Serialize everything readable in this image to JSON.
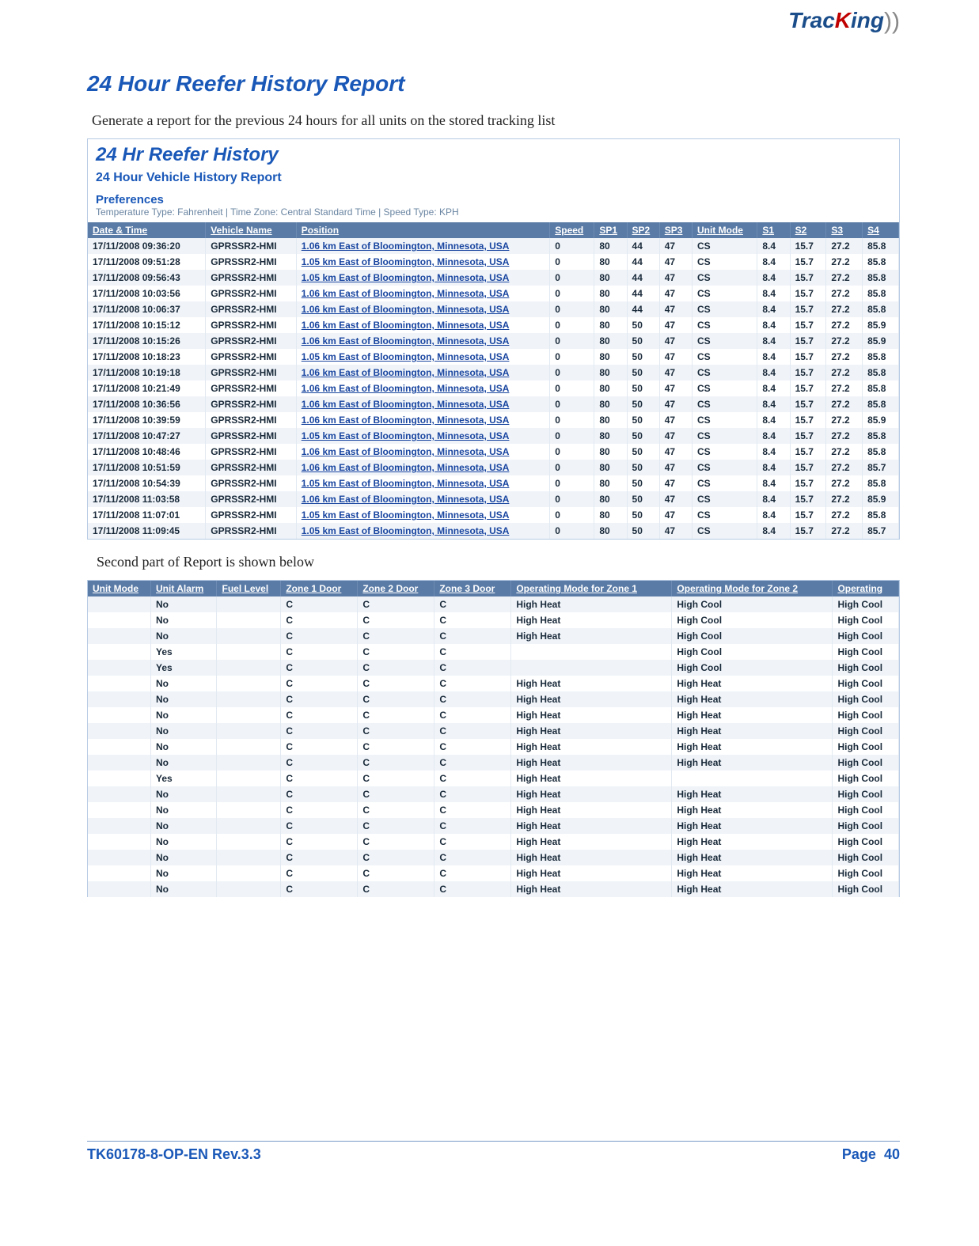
{
  "logo": {
    "part1": "Trac",
    "part2": "K",
    "part3": "ing",
    "arc": "))"
  },
  "section_title": "24 Hour Reefer History Report",
  "intro": "Generate a report for the previous 24 hours for all units on the stored tracking list",
  "second_part_text": "Second part of Report is shown below",
  "footer": {
    "left": "TK60178-8-OP-EN Rev.3.3",
    "right_label": "Page",
    "right_num": "40"
  },
  "ss1": {
    "title": "24 Hr Reefer History",
    "subtitle": "24 Hour Vehicle History Report",
    "pref_label": "Preferences",
    "pref_line": "Temperature Type: Fahrenheit | Time Zone: Central Standard Time | Speed Type: KPH",
    "columns": [
      "Date & Time",
      "Vehicle Name",
      "Position",
      "Speed",
      "SP1",
      "SP2",
      "SP3",
      "Unit Mode",
      "S1",
      "S2",
      "S3",
      "S4"
    ],
    "col_widths": [
      "130",
      "100",
      "280",
      "44",
      "36",
      "36",
      "36",
      "72",
      "36",
      "40",
      "40",
      "40"
    ],
    "rows": [
      [
        "17/11/2008 09:36:20",
        "GPRSSR2-HMI",
        "1.06 km East of Bloomington, Minnesota, USA",
        "0",
        "80",
        "44",
        "47",
        "CS",
        "8.4",
        "15.7",
        "27.2",
        "85.8"
      ],
      [
        "17/11/2008 09:51:28",
        "GPRSSR2-HMI",
        "1.05 km East of Bloomington, Minnesota, USA",
        "0",
        "80",
        "44",
        "47",
        "CS",
        "8.4",
        "15.7",
        "27.2",
        "85.8"
      ],
      [
        "17/11/2008 09:56:43",
        "GPRSSR2-HMI",
        "1.05 km East of Bloomington, Minnesota, USA",
        "0",
        "80",
        "44",
        "47",
        "CS",
        "8.4",
        "15.7",
        "27.2",
        "85.8"
      ],
      [
        "17/11/2008 10:03:56",
        "GPRSSR2-HMI",
        "1.06 km East of Bloomington, Minnesota, USA",
        "0",
        "80",
        "44",
        "47",
        "CS",
        "8.4",
        "15.7",
        "27.2",
        "85.8"
      ],
      [
        "17/11/2008 10:06:37",
        "GPRSSR2-HMI",
        "1.06 km East of Bloomington, Minnesota, USA",
        "0",
        "80",
        "44",
        "47",
        "CS",
        "8.4",
        "15.7",
        "27.2",
        "85.8"
      ],
      [
        "17/11/2008 10:15:12",
        "GPRSSR2-HMI",
        "1.06 km East of Bloomington, Minnesota, USA",
        "0",
        "80",
        "50",
        "47",
        "CS",
        "8.4",
        "15.7",
        "27.2",
        "85.9"
      ],
      [
        "17/11/2008 10:15:26",
        "GPRSSR2-HMI",
        "1.06 km East of Bloomington, Minnesota, USA",
        "0",
        "80",
        "50",
        "47",
        "CS",
        "8.4",
        "15.7",
        "27.2",
        "85.9"
      ],
      [
        "17/11/2008 10:18:23",
        "GPRSSR2-HMI",
        "1.05 km East of Bloomington, Minnesota, USA",
        "0",
        "80",
        "50",
        "47",
        "CS",
        "8.4",
        "15.7",
        "27.2",
        "85.8"
      ],
      [
        "17/11/2008 10:19:18",
        "GPRSSR2-HMI",
        "1.06 km East of Bloomington, Minnesota, USA",
        "0",
        "80",
        "50",
        "47",
        "CS",
        "8.4",
        "15.7",
        "27.2",
        "85.8"
      ],
      [
        "17/11/2008 10:21:49",
        "GPRSSR2-HMI",
        "1.06 km East of Bloomington, Minnesota, USA",
        "0",
        "80",
        "50",
        "47",
        "CS",
        "8.4",
        "15.7",
        "27.2",
        "85.8"
      ],
      [
        "17/11/2008 10:36:56",
        "GPRSSR2-HMI",
        "1.06 km East of Bloomington, Minnesota, USA",
        "0",
        "80",
        "50",
        "47",
        "CS",
        "8.4",
        "15.7",
        "27.2",
        "85.8"
      ],
      [
        "17/11/2008 10:39:59",
        "GPRSSR2-HMI",
        "1.06 km East of Bloomington, Minnesota, USA",
        "0",
        "80",
        "50",
        "47",
        "CS",
        "8.4",
        "15.7",
        "27.2",
        "85.9"
      ],
      [
        "17/11/2008 10:47:27",
        "GPRSSR2-HMI",
        "1.05 km East of Bloomington, Minnesota, USA",
        "0",
        "80",
        "50",
        "47",
        "CS",
        "8.4",
        "15.7",
        "27.2",
        "85.8"
      ],
      [
        "17/11/2008 10:48:46",
        "GPRSSR2-HMI",
        "1.06 km East of Bloomington, Minnesota, USA",
        "0",
        "80",
        "50",
        "47",
        "CS",
        "8.4",
        "15.7",
        "27.2",
        "85.8"
      ],
      [
        "17/11/2008 10:51:59",
        "GPRSSR2-HMI",
        "1.06 km East of Bloomington, Minnesota, USA",
        "0",
        "80",
        "50",
        "47",
        "CS",
        "8.4",
        "15.7",
        "27.2",
        "85.7"
      ],
      [
        "17/11/2008 10:54:39",
        "GPRSSR2-HMI",
        "1.05 km East of Bloomington, Minnesota, USA",
        "0",
        "80",
        "50",
        "47",
        "CS",
        "8.4",
        "15.7",
        "27.2",
        "85.8"
      ],
      [
        "17/11/2008 11:03:58",
        "GPRSSR2-HMI",
        "1.06 km East of Bloomington, Minnesota, USA",
        "0",
        "80",
        "50",
        "47",
        "CS",
        "8.4",
        "15.7",
        "27.2",
        "85.9"
      ],
      [
        "17/11/2008 11:07:01",
        "GPRSSR2-HMI",
        "1.05 km East of Bloomington, Minnesota, USA",
        "0",
        "80",
        "50",
        "47",
        "CS",
        "8.4",
        "15.7",
        "27.2",
        "85.8"
      ],
      [
        "17/11/2008 11:09:45",
        "GPRSSR2-HMI",
        "1.05 km East of Bloomington, Minnesota, USA",
        "0",
        "80",
        "50",
        "47",
        "CS",
        "8.4",
        "15.7",
        "27.2",
        "85.7"
      ]
    ]
  },
  "ss2": {
    "columns": [
      "Unit Mode",
      "Unit Alarm",
      "Fuel Level",
      "Zone 1 Door",
      "Zone 2 Door",
      "Zone 3 Door",
      "Operating Mode for Zone 1",
      "Operating Mode for Zone 2",
      "Operating"
    ],
    "col_widths": [
      "70",
      "74",
      "70",
      "86",
      "86",
      "86",
      "180",
      "180",
      "74"
    ],
    "rows": [
      [
        "",
        "No",
        "",
        "C",
        "C",
        "C",
        "High Heat",
        "High Cool",
        "High Cool"
      ],
      [
        "",
        "No",
        "",
        "C",
        "C",
        "C",
        "High Heat",
        "High Cool",
        "High Cool"
      ],
      [
        "",
        "No",
        "",
        "C",
        "C",
        "C",
        "High Heat",
        "High Cool",
        "High Cool"
      ],
      [
        "",
        "Yes",
        "",
        "C",
        "C",
        "C",
        "",
        "High Cool",
        "High Cool"
      ],
      [
        "",
        "Yes",
        "",
        "C",
        "C",
        "C",
        "",
        "High Cool",
        "High Cool"
      ],
      [
        "",
        "No",
        "",
        "C",
        "C",
        "C",
        "High Heat",
        "High Heat",
        "High Cool"
      ],
      [
        "",
        "No",
        "",
        "C",
        "C",
        "C",
        "High Heat",
        "High Heat",
        "High Cool"
      ],
      [
        "",
        "No",
        "",
        "C",
        "C",
        "C",
        "High Heat",
        "High Heat",
        "High Cool"
      ],
      [
        "",
        "No",
        "",
        "C",
        "C",
        "C",
        "High Heat",
        "High Heat",
        "High Cool"
      ],
      [
        "",
        "No",
        "",
        "C",
        "C",
        "C",
        "High Heat",
        "High Heat",
        "High Cool"
      ],
      [
        "",
        "No",
        "",
        "C",
        "C",
        "C",
        "High Heat",
        "High Heat",
        "High Cool"
      ],
      [
        "",
        "Yes",
        "",
        "C",
        "C",
        "C",
        "High Heat",
        "",
        "High Cool"
      ],
      [
        "",
        "No",
        "",
        "C",
        "C",
        "C",
        "High Heat",
        "High Heat",
        "High Cool"
      ],
      [
        "",
        "No",
        "",
        "C",
        "C",
        "C",
        "High Heat",
        "High Heat",
        "High Cool"
      ],
      [
        "",
        "No",
        "",
        "C",
        "C",
        "C",
        "High Heat",
        "High Heat",
        "High Cool"
      ],
      [
        "",
        "No",
        "",
        "C",
        "C",
        "C",
        "High Heat",
        "High Heat",
        "High Cool"
      ],
      [
        "",
        "No",
        "",
        "C",
        "C",
        "C",
        "High Heat",
        "High Heat",
        "High Cool"
      ],
      [
        "",
        "No",
        "",
        "C",
        "C",
        "C",
        "High Heat",
        "High Heat",
        "High Cool"
      ],
      [
        "",
        "No",
        "",
        "C",
        "C",
        "C",
        "High Heat",
        "High Heat",
        "High Cool"
      ]
    ]
  },
  "colors": {
    "heading": "#1a58b8",
    "tableHeaderBg": "#5a7ba6",
    "rowEven": "#f0f4f9",
    "link": "#1a46a0"
  }
}
